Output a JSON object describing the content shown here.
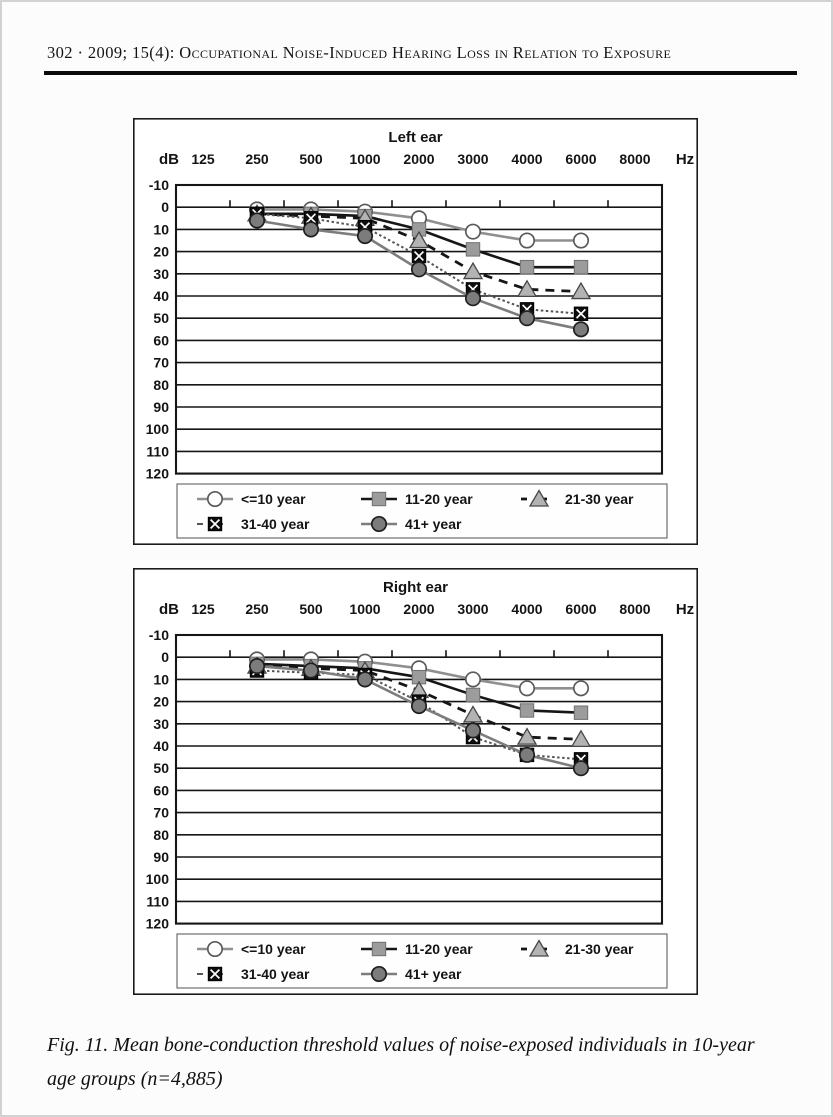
{
  "header": {
    "text": "302 · 2009; 15(4): Occupational Noise-Induced Hearing Loss in Relation to Exposure"
  },
  "figure_caption": {
    "line1": "Fig. 11. Mean bone-conduction threshold values of noise-exposed individuals in 10-year",
    "line2": "age groups (n=4,885)"
  },
  "chart_data": [
    {
      "type": "line",
      "title": "Left ear",
      "y_axis_label": "dB",
      "x_axis_label": "Hz",
      "x_tick_labels": [
        "125",
        "250",
        "500",
        "1000",
        "2000",
        "3000",
        "4000",
        "6000",
        "8000"
      ],
      "y_ticks": [
        -10,
        0,
        10,
        20,
        30,
        40,
        50,
        60,
        70,
        80,
        90,
        100,
        110,
        120
      ],
      "ylim": [
        -10,
        120
      ],
      "y_inverted": true,
      "grid": "horizontal",
      "legend_position": "bottom",
      "x": [
        250,
        500,
        1000,
        2000,
        3000,
        4000,
        6000
      ],
      "series": [
        {
          "name": "<=10 year",
          "marker": "open-circle",
          "line": "solid-gray",
          "values": [
            1,
            1,
            2,
            5,
            11,
            15,
            15
          ]
        },
        {
          "name": "11-20 year",
          "marker": "gray-square",
          "line": "solid-black",
          "values": [
            3,
            3,
            4,
            10,
            19,
            27,
            27
          ]
        },
        {
          "name": "21-30 year",
          "marker": "gray-triangle",
          "line": "dashed-black",
          "values": [
            3,
            4,
            5,
            15,
            29,
            37,
            38
          ]
        },
        {
          "name": "31-40 year",
          "marker": "black-x-square",
          "line": "dotted-dark",
          "values": [
            3,
            5,
            9,
            22,
            37,
            46,
            48
          ]
        },
        {
          "name": "41+ year",
          "marker": "filled-circle",
          "line": "solid-darkgray",
          "values": [
            6,
            10,
            13,
            28,
            41,
            50,
            55
          ]
        }
      ]
    },
    {
      "type": "line",
      "title": "Right ear",
      "y_axis_label": "dB",
      "x_axis_label": "Hz",
      "x_tick_labels": [
        "125",
        "250",
        "500",
        "1000",
        "2000",
        "3000",
        "4000",
        "6000",
        "8000"
      ],
      "y_ticks": [
        -10,
        0,
        10,
        20,
        30,
        40,
        50,
        60,
        70,
        80,
        90,
        100,
        110,
        120
      ],
      "ylim": [
        -10,
        120
      ],
      "y_inverted": true,
      "grid": "horizontal",
      "legend_position": "bottom",
      "x": [
        250,
        500,
        1000,
        2000,
        3000,
        4000,
        6000
      ],
      "series": [
        {
          "name": "<=10 year",
          "marker": "open-circle",
          "line": "solid-gray",
          "values": [
            1,
            1,
            2,
            5,
            10,
            14,
            14
          ]
        },
        {
          "name": "11-20 year",
          "marker": "gray-square",
          "line": "solid-black",
          "values": [
            3,
            4,
            5,
            9,
            17,
            24,
            25
          ]
        },
        {
          "name": "21-30 year",
          "marker": "gray-triangle",
          "line": "dashed-black",
          "values": [
            4,
            5,
            6,
            15,
            26,
            36,
            37
          ]
        },
        {
          "name": "31-40 year",
          "marker": "black-x-square",
          "line": "dotted-dark",
          "values": [
            6,
            7,
            8,
            20,
            36,
            44,
            46
          ]
        },
        {
          "name": "41+ year",
          "marker": "filled-circle",
          "line": "solid-darkgray",
          "values": [
            4,
            6,
            10,
            22,
            33,
            44,
            50
          ]
        }
      ]
    }
  ],
  "styles": {
    "grid_color": "#161616",
    "text_color": "#141414",
    "chart_bg": "#ffffff",
    "box_border": "#1a1a1a",
    "legend_border": "#6f6f6f",
    "lines": {
      "solid-gray": {
        "color": "#8f8f8f",
        "width": 2.6,
        "dash": ""
      },
      "solid-black": {
        "color": "#161616",
        "width": 2.6,
        "dash": ""
      },
      "dashed-black": {
        "color": "#161616",
        "width": 2.8,
        "dash": "9 7"
      },
      "dotted-dark": {
        "color": "#555555",
        "width": 2.0,
        "dash": "2.5 2.5"
      },
      "solid-darkgray": {
        "color": "#7d7d7d",
        "width": 2.6,
        "dash": ""
      }
    },
    "markers": {
      "open-circle": {
        "fill": "#ffffff",
        "stroke": "#5a5a5a"
      },
      "gray-square": {
        "fill": "#9c9c9c",
        "stroke": "#6f6f6f"
      },
      "gray-triangle": {
        "fill": "#b3b3b3",
        "stroke": "#474747"
      },
      "black-x-square": {
        "fill": "#0d0d0d",
        "stroke": "#ffffff"
      },
      "filled-circle": {
        "fill": "#7c7c7c",
        "stroke": "#1f1f1f"
      }
    }
  }
}
